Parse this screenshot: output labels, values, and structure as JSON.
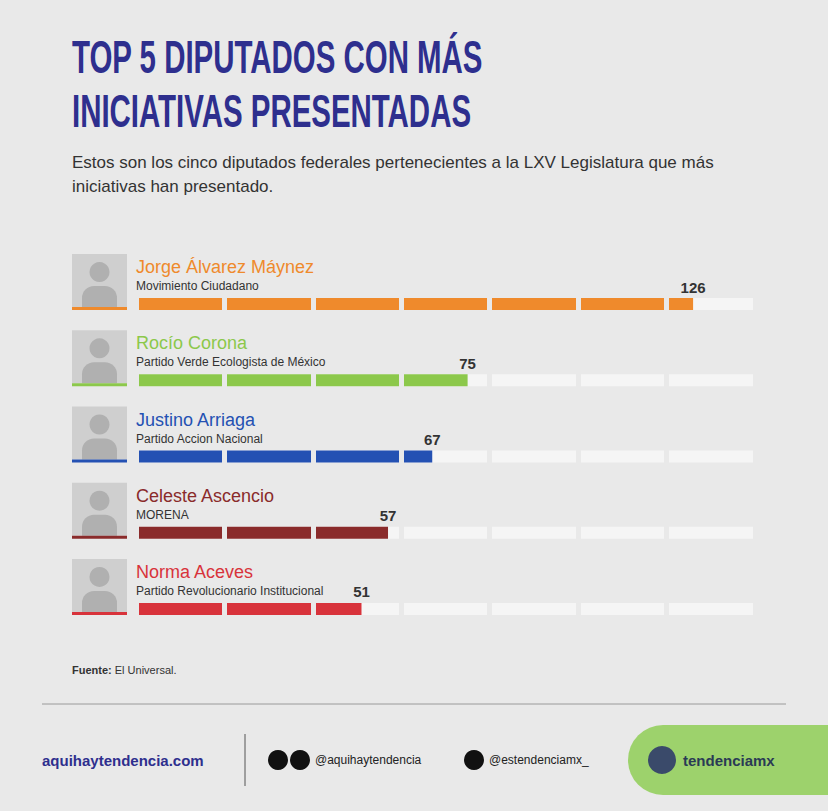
{
  "chart_data": {
    "type": "bar",
    "orientation": "horizontal",
    "title": "TOP 5 DIPUTADOS CON MÁS INICIATIVAS PRESENTADAS",
    "subtitle": "Estos son los cinco diputados federales pertenecientes a la LXV Legislatura que más iniciativas han presentado.",
    "categories": [
      "Jorge Álvarez Máynez",
      "Rocío Corona",
      "Justino Arriaga",
      "Celeste Ascencio",
      "Norma Aceves"
    ],
    "parties": [
      "Movimiento Ciudadano",
      "Partido Verde Ecologista de México",
      "Partido Accion Nacional",
      "MORENA",
      "Partido Revolucionario Institucional"
    ],
    "values": [
      126,
      75,
      67,
      57,
      51
    ],
    "colors": [
      "#ef8a2c",
      "#8cc84b",
      "#2451b3",
      "#8a2b2b",
      "#d8333b"
    ],
    "xlim": [
      0,
      140
    ],
    "xticks": [
      0,
      20,
      40,
      60,
      80,
      100,
      120,
      140
    ],
    "grid": true,
    "tick_labels": false,
    "data_labels": true,
    "source_label": "Fuente:",
    "source": "El Universal."
  },
  "footer": {
    "website": "aquihaytendencia.com",
    "facebook_instagram": "@aquihaytendencia",
    "twitter": "@estendenciamx_",
    "brand": "tendenciamx"
  }
}
